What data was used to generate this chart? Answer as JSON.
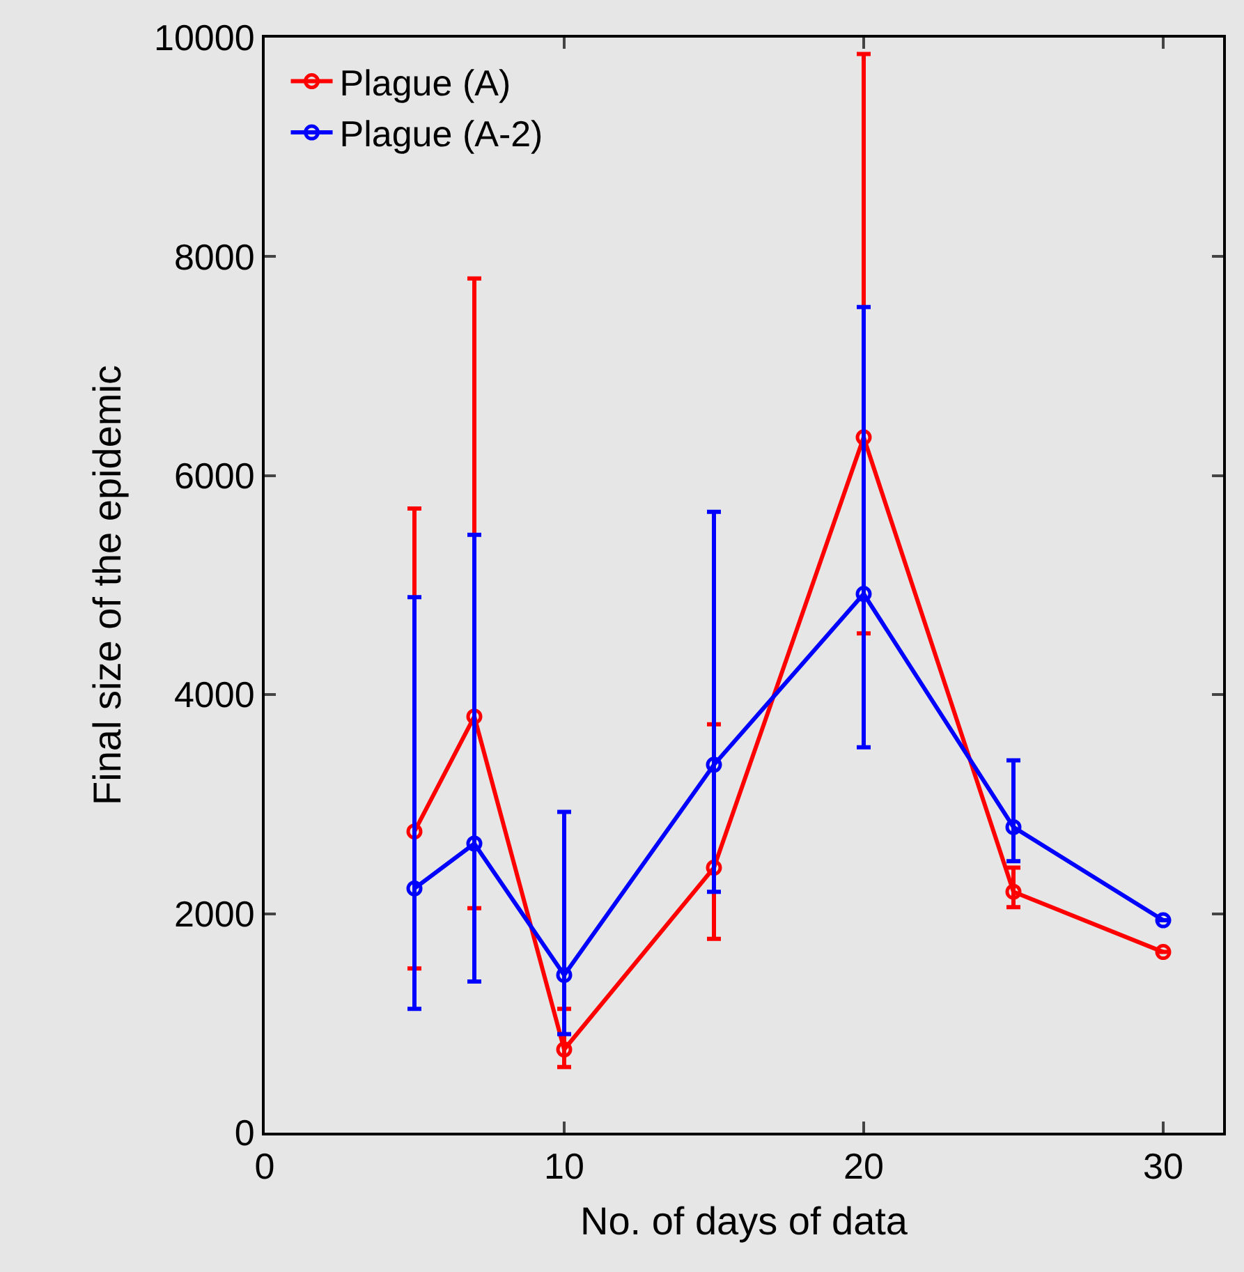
{
  "chart_data": {
    "type": "line",
    "xlabel": "No. of days of data",
    "ylabel": "Final size of the epidemic",
    "x": [
      5,
      7,
      10,
      15,
      20,
      25,
      30
    ],
    "series": [
      {
        "name": "Plague (A)",
        "color": "#ff0000",
        "values": [
          2750,
          3800,
          760,
          2420,
          6350,
          2200,
          1650
        ],
        "errors": [
          [
            1500,
            5700
          ],
          [
            2050,
            7800
          ],
          [
            600,
            1130
          ],
          [
            1770,
            3730
          ],
          [
            4560,
            9850
          ],
          [
            2060,
            2420
          ],
          null
        ]
      },
      {
        "name": "Plague (A-2)",
        "color": "#0000ff",
        "values": [
          2230,
          2640,
          1440,
          3360,
          4920,
          2790,
          1940
        ],
        "errors": [
          [
            1130,
            4890
          ],
          [
            1380,
            5460
          ],
          [
            900,
            2930
          ],
          [
            2200,
            5670
          ],
          [
            3520,
            7540
          ],
          [
            2480,
            3400
          ],
          null
        ]
      }
    ],
    "xlim": [
      0,
      32
    ],
    "xticks": [
      0,
      10,
      20,
      30
    ],
    "ylim": [
      0,
      10000
    ],
    "yticks": [
      0,
      2000,
      4000,
      6000,
      8000,
      10000
    ],
    "grid": false,
    "legend": "top left",
    "marker": "circle",
    "line_style": "solid"
  }
}
